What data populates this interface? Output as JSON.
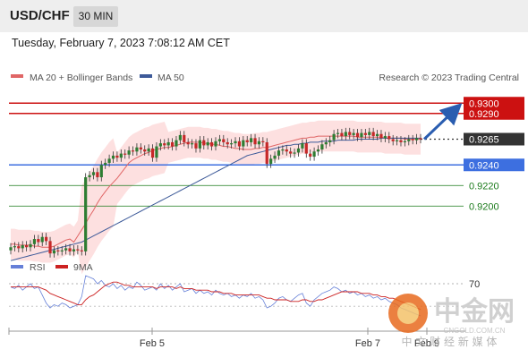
{
  "header": {
    "symbol": "USD/CHF",
    "timeframe": "30 MIN"
  },
  "datetime": "Tuesday, February 7, 2023 7:08:12 AM CET",
  "legend": {
    "ma20": "MA 20 + Bollinger Bands",
    "ma50": "MA 50",
    "ma20_color": "#e06666",
    "ma50_color": "#3d5a99",
    "source": "Research © 2023 Trading Central"
  },
  "rsi_legend": {
    "rsi": "RSI",
    "ma9": "9MA",
    "rsi_color": "#6680d8",
    "ma9_color": "#cc2222"
  },
  "watermark": {
    "brand": "中金网",
    "url": "CNGOLD.COM.CN",
    "tagline": "中 文 财 经 新 媒 体"
  },
  "colors": {
    "resistance": "#cc1111",
    "support": "#3d6fe0",
    "target": "#1a7a1a",
    "current": "#333333",
    "up_candle": "#2e7d32",
    "down_candle": "#c62828"
  },
  "chart_data": {
    "type": "candlestick",
    "pair": "USD/CHF",
    "interval": "30 MIN",
    "x_ticks": [
      "Feb 5",
      "Feb 7",
      "Feb 9"
    ],
    "ylim": [
      0.9155,
      0.9315
    ],
    "current_price": 0.9265,
    "levels": [
      {
        "value": 0.93,
        "label": "0.9300",
        "kind": "resistance"
      },
      {
        "value": 0.929,
        "label": "0.9290",
        "kind": "resistance"
      },
      {
        "value": 0.9265,
        "label": "0.9265",
        "kind": "current"
      },
      {
        "value": 0.924,
        "label": "0.9240",
        "kind": "support"
      },
      {
        "value": 0.922,
        "label": "0.9220",
        "kind": "target"
      },
      {
        "value": 0.92,
        "label": "0.9200",
        "kind": "target"
      }
    ],
    "projection": {
      "from": 0.9265,
      "to": 0.93
    },
    "close": [
      0.916,
      0.9161,
      0.9159,
      0.9162,
      0.916,
      0.9163,
      0.9168,
      0.9165,
      0.917,
      0.9166,
      0.9154,
      0.9157,
      0.9156,
      0.9157,
      0.9159,
      0.9156,
      0.9158,
      0.9157,
      0.9156,
      0.9228,
      0.923,
      0.9233,
      0.9228,
      0.924,
      0.9242,
      0.9246,
      0.9249,
      0.9247,
      0.9251,
      0.925,
      0.9254,
      0.9253,
      0.9257,
      0.9255,
      0.9253,
      0.9256,
      0.9247,
      0.9258,
      0.9261,
      0.9259,
      0.9262,
      0.9258,
      0.9264,
      0.9269,
      0.9262,
      0.926,
      0.9261,
      0.9256,
      0.9264,
      0.9259,
      0.9262,
      0.9258,
      0.9263,
      0.9265,
      0.9262,
      0.926,
      0.9261,
      0.9263,
      0.9258,
      0.9264,
      0.9262,
      0.9266,
      0.926,
      0.9263,
      0.9262,
      0.9241,
      0.9246,
      0.9249,
      0.9254,
      0.9255,
      0.9253,
      0.9251,
      0.9252,
      0.9256,
      0.9261,
      0.9251,
      0.9248,
      0.9253,
      0.9255,
      0.926,
      0.9262,
      0.9264,
      0.927,
      0.9271,
      0.9268,
      0.9272,
      0.9269,
      0.9271,
      0.9267,
      0.9271,
      0.9269,
      0.9272,
      0.9268,
      0.927,
      0.9266,
      0.9268,
      0.9265,
      0.9263,
      0.9264,
      0.9262,
      0.9263,
      0.9265,
      0.9264,
      0.9266,
      0.9265
    ],
    "ma20": [
      0.9163,
      0.9163,
      0.9162,
      0.9162,
      0.9162,
      0.9162,
      0.9161,
      0.9161,
      0.916,
      0.916,
      0.916,
      0.9161,
      0.9163,
      0.9165,
      0.9167,
      0.9168,
      0.9165,
      0.9171,
      0.9177,
      0.9183,
      0.919,
      0.9196,
      0.9203,
      0.9209,
      0.9214,
      0.9219,
      0.9223,
      0.9227,
      0.9232,
      0.9237,
      0.9242,
      0.9245,
      0.9247,
      0.9249,
      0.9251,
      0.9252,
      0.9254,
      0.9255,
      0.9256,
      0.9257,
      0.9257,
      0.9258,
      0.9259,
      0.926,
      0.9261,
      0.9262,
      0.9262,
      0.9262,
      0.9262,
      0.9261,
      0.9261,
      0.926,
      0.926,
      0.9259,
      0.9258,
      0.9258,
      0.9257,
      0.9256,
      0.9256,
      0.9255,
      0.9255,
      0.9255,
      0.9256,
      0.9256,
      0.9257,
      0.9257,
      0.9258,
      0.9259,
      0.926,
      0.9261,
      0.9262,
      0.9263,
      0.9264,
      0.9265,
      0.9266,
      0.9266,
      0.9267,
      0.9267,
      0.9268,
      0.9268,
      0.9268,
      0.9268,
      0.9268,
      0.9268,
      0.9268,
      0.9268,
      0.9268,
      0.9268,
      0.9267,
      0.9267,
      0.9267,
      0.9267,
      0.9267,
      0.9267,
      0.9267,
      0.9266,
      0.9266,
      0.9266,
      0.9266,
      0.9266,
      0.9265,
      0.9265,
      0.9265,
      0.9265,
      0.9265
    ],
    "ma50": [
      0.9147,
      0.9148,
      0.9149,
      0.915,
      0.9151,
      0.9152,
      0.9153,
      0.9154,
      0.9155,
      0.9156,
      0.9157,
      0.9158,
      0.9159,
      0.916,
      0.9161,
      0.9162,
      0.9163,
      0.9164,
      0.9165,
      0.9167,
      0.9169,
      0.9171,
      0.9173,
      0.9175,
      0.9177,
      0.9179,
      0.9181,
      0.9183,
      0.9185,
      0.9187,
      0.9189,
      0.9191,
      0.9193,
      0.9195,
      0.9197,
      0.9199,
      0.9201,
      0.9203,
      0.9205,
      0.9207,
      0.9209,
      0.9211,
      0.9213,
      0.9215,
      0.9217,
      0.9219,
      0.9221,
      0.9223,
      0.9225,
      0.9227,
      0.9229,
      0.9231,
      0.9233,
      0.9235,
      0.9237,
      0.9239,
      0.9241,
      0.9243,
      0.9245,
      0.9247,
      0.9249,
      0.925,
      0.9251,
      0.9252,
      0.9253,
      0.9254,
      0.9255,
      0.9256,
      0.9257,
      0.9258,
      0.9259,
      0.9259,
      0.926,
      0.926,
      0.9261,
      0.9261,
      0.9262,
      0.9262,
      0.9262,
      0.9263,
      0.9263,
      0.9263,
      0.9263,
      0.9264,
      0.9264,
      0.9264,
      0.9264,
      0.9264,
      0.9265,
      0.9265,
      0.9265,
      0.9265,
      0.9265,
      0.9265,
      0.9266,
      0.9266,
      0.9266,
      0.9266,
      0.9266,
      0.9266,
      0.9266,
      0.9266,
      0.9266,
      0.9266,
      0.9266
    ],
    "rsi": {
      "levels": [
        70
      ],
      "level_labels": [
        "70"
      ],
      "ylim": [
        45,
        75
      ],
      "rsi": [
        68,
        67,
        69,
        66,
        68,
        70,
        67,
        68,
        63,
        58,
        55,
        57,
        56,
        58,
        57,
        55,
        56,
        57,
        62,
        75,
        74,
        73,
        70,
        72,
        69,
        68,
        70,
        67,
        69,
        66,
        68,
        67,
        71,
        69,
        66,
        67,
        68,
        66,
        70,
        67,
        69,
        66,
        68,
        70,
        65,
        66,
        67,
        64,
        66,
        64,
        65,
        63,
        66,
        64,
        63,
        64,
        62,
        63,
        61,
        63,
        62,
        64,
        61,
        62,
        60,
        55,
        56,
        58,
        61,
        62,
        60,
        59,
        61,
        63,
        64,
        58,
        56,
        60,
        62,
        64,
        65,
        66,
        68,
        67,
        65,
        66,
        64,
        65,
        63,
        64,
        62,
        63,
        61,
        62,
        60,
        61,
        59,
        58,
        57,
        55,
        54,
        53,
        52,
        51,
        50
      ],
      "ma9": [
        68,
        68,
        68,
        68,
        68,
        68,
        68,
        68,
        67,
        66,
        64,
        63,
        62,
        61,
        60,
        59,
        58,
        57,
        57,
        60,
        62,
        63,
        65,
        67,
        69,
        70,
        71,
        71,
        70,
        69,
        69,
        68,
        68,
        68,
        68,
        68,
        68,
        67,
        68,
        68,
        68,
        68,
        67,
        68,
        67,
        67,
        67,
        66,
        66,
        66,
        66,
        65,
        65,
        65,
        64,
        64,
        64,
        63,
        63,
        63,
        63,
        63,
        63,
        63,
        62,
        61,
        61,
        60,
        60,
        60,
        60,
        59,
        59,
        59,
        60,
        60,
        59,
        59,
        60,
        60,
        61,
        62,
        63,
        64,
        65,
        65,
        65,
        65,
        65,
        64,
        64,
        64,
        63,
        63,
        62,
        62,
        61,
        61,
        60,
        59,
        58,
        57,
        56,
        55,
        54
      ]
    }
  }
}
